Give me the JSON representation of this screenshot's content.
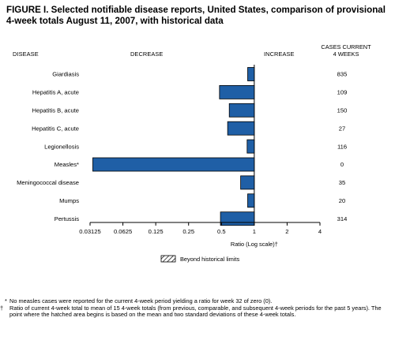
{
  "figure": {
    "title": "FIGURE I. Selected notifiable disease reports, United States, comparison of provisional 4-week totals August 11, 2007, with historical data",
    "col_disease": "DISEASE",
    "col_decrease": "DECREASE",
    "col_increase": "INCREASE",
    "col_cases_line1": "CASES CURRENT",
    "col_cases_line2": "4 WEEKS",
    "legend_label": "Beyond historical limits",
    "footnote_1_symbol": "*",
    "footnote_1": "No measles cases were reported for the current 4-week period yielding a ratio for week 32 of zero (0).",
    "footnote_2_symbol": "†",
    "footnote_2": "Ratio of current 4-week total to mean of 15 4-week totals (from previous, comparable, and subsequent 4-week periods for the past 5 years). The point where the hatched area begins is based on the mean and two standard deviations of these 4-week totals."
  },
  "chart_data": {
    "type": "bar",
    "orientation": "horizontal",
    "x_scale": "log2",
    "xlabel": "Ratio (Log scale)†",
    "xlim": [
      0.03125,
      4
    ],
    "reference_line": 1,
    "x_ticks": [
      "0.03125",
      "0.0625",
      "0.125",
      "0.25",
      "0.5",
      "1",
      "2",
      "4"
    ],
    "x_tick_values": [
      0.03125,
      0.0625,
      0.125,
      0.25,
      0.5,
      1,
      2,
      4
    ],
    "categories": [
      "Giardiasis",
      "Hepatitis A, acute",
      "Hepatitis B, acute",
      "Hepatitis C, acute",
      "Legionellosis",
      "Measles*",
      "Meningococcal disease",
      "Mumps",
      "Pertussis"
    ],
    "values": [
      0.87,
      0.48,
      0.59,
      0.57,
      0.86,
      0.0331,
      0.75,
      0.87,
      0.49
    ],
    "cases_current_4_weeks": [
      835,
      109,
      150,
      27,
      116,
      0,
      35,
      20,
      314
    ],
    "bar_color": "#1f5fa6",
    "hatched_bars": []
  }
}
